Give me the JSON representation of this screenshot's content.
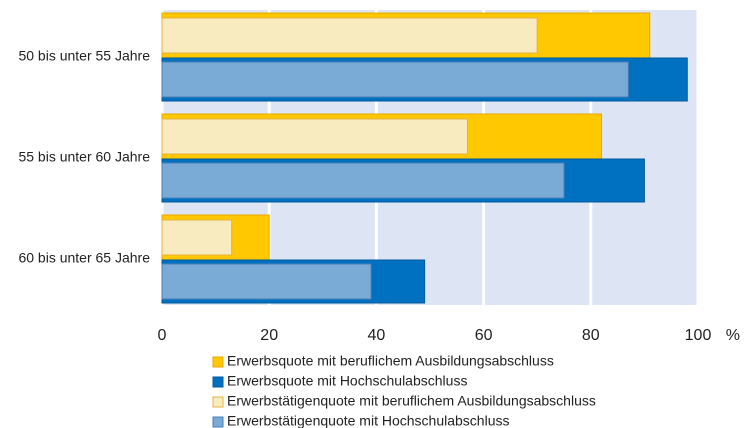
{
  "chart_data": {
    "type": "bar",
    "orientation": "horizontal",
    "overlap": true,
    "categories": [
      "50 bis unter 55 Jahre",
      "55 bis unter 60 Jahre",
      "60 bis unter 65 Jahre"
    ],
    "series": [
      {
        "name": "Erwerbsquote mit beruflichem Ausbildungsabschluss",
        "color": "#ffc800",
        "values": [
          91,
          82,
          20
        ]
      },
      {
        "name": "Erwerbsquote mit Hochschulabschluss",
        "color": "#0070c0",
        "values": [
          98,
          90,
          49
        ]
      },
      {
        "name": "Erwerbstätigenquote mit beruflichem Ausbildungsabschluss",
        "color": "#f7ebbf",
        "values": [
          70,
          57,
          13
        ]
      },
      {
        "name": "Erwerbstätigenquote mit Hochschulabschluss",
        "color": "#7aaad6",
        "values": [
          87,
          75,
          39
        ]
      }
    ],
    "xlim": [
      0,
      100
    ],
    "xticks": [
      0,
      20,
      40,
      60,
      80,
      100
    ],
    "xunit": "%",
    "grid": true,
    "background": "#dde5f4"
  }
}
